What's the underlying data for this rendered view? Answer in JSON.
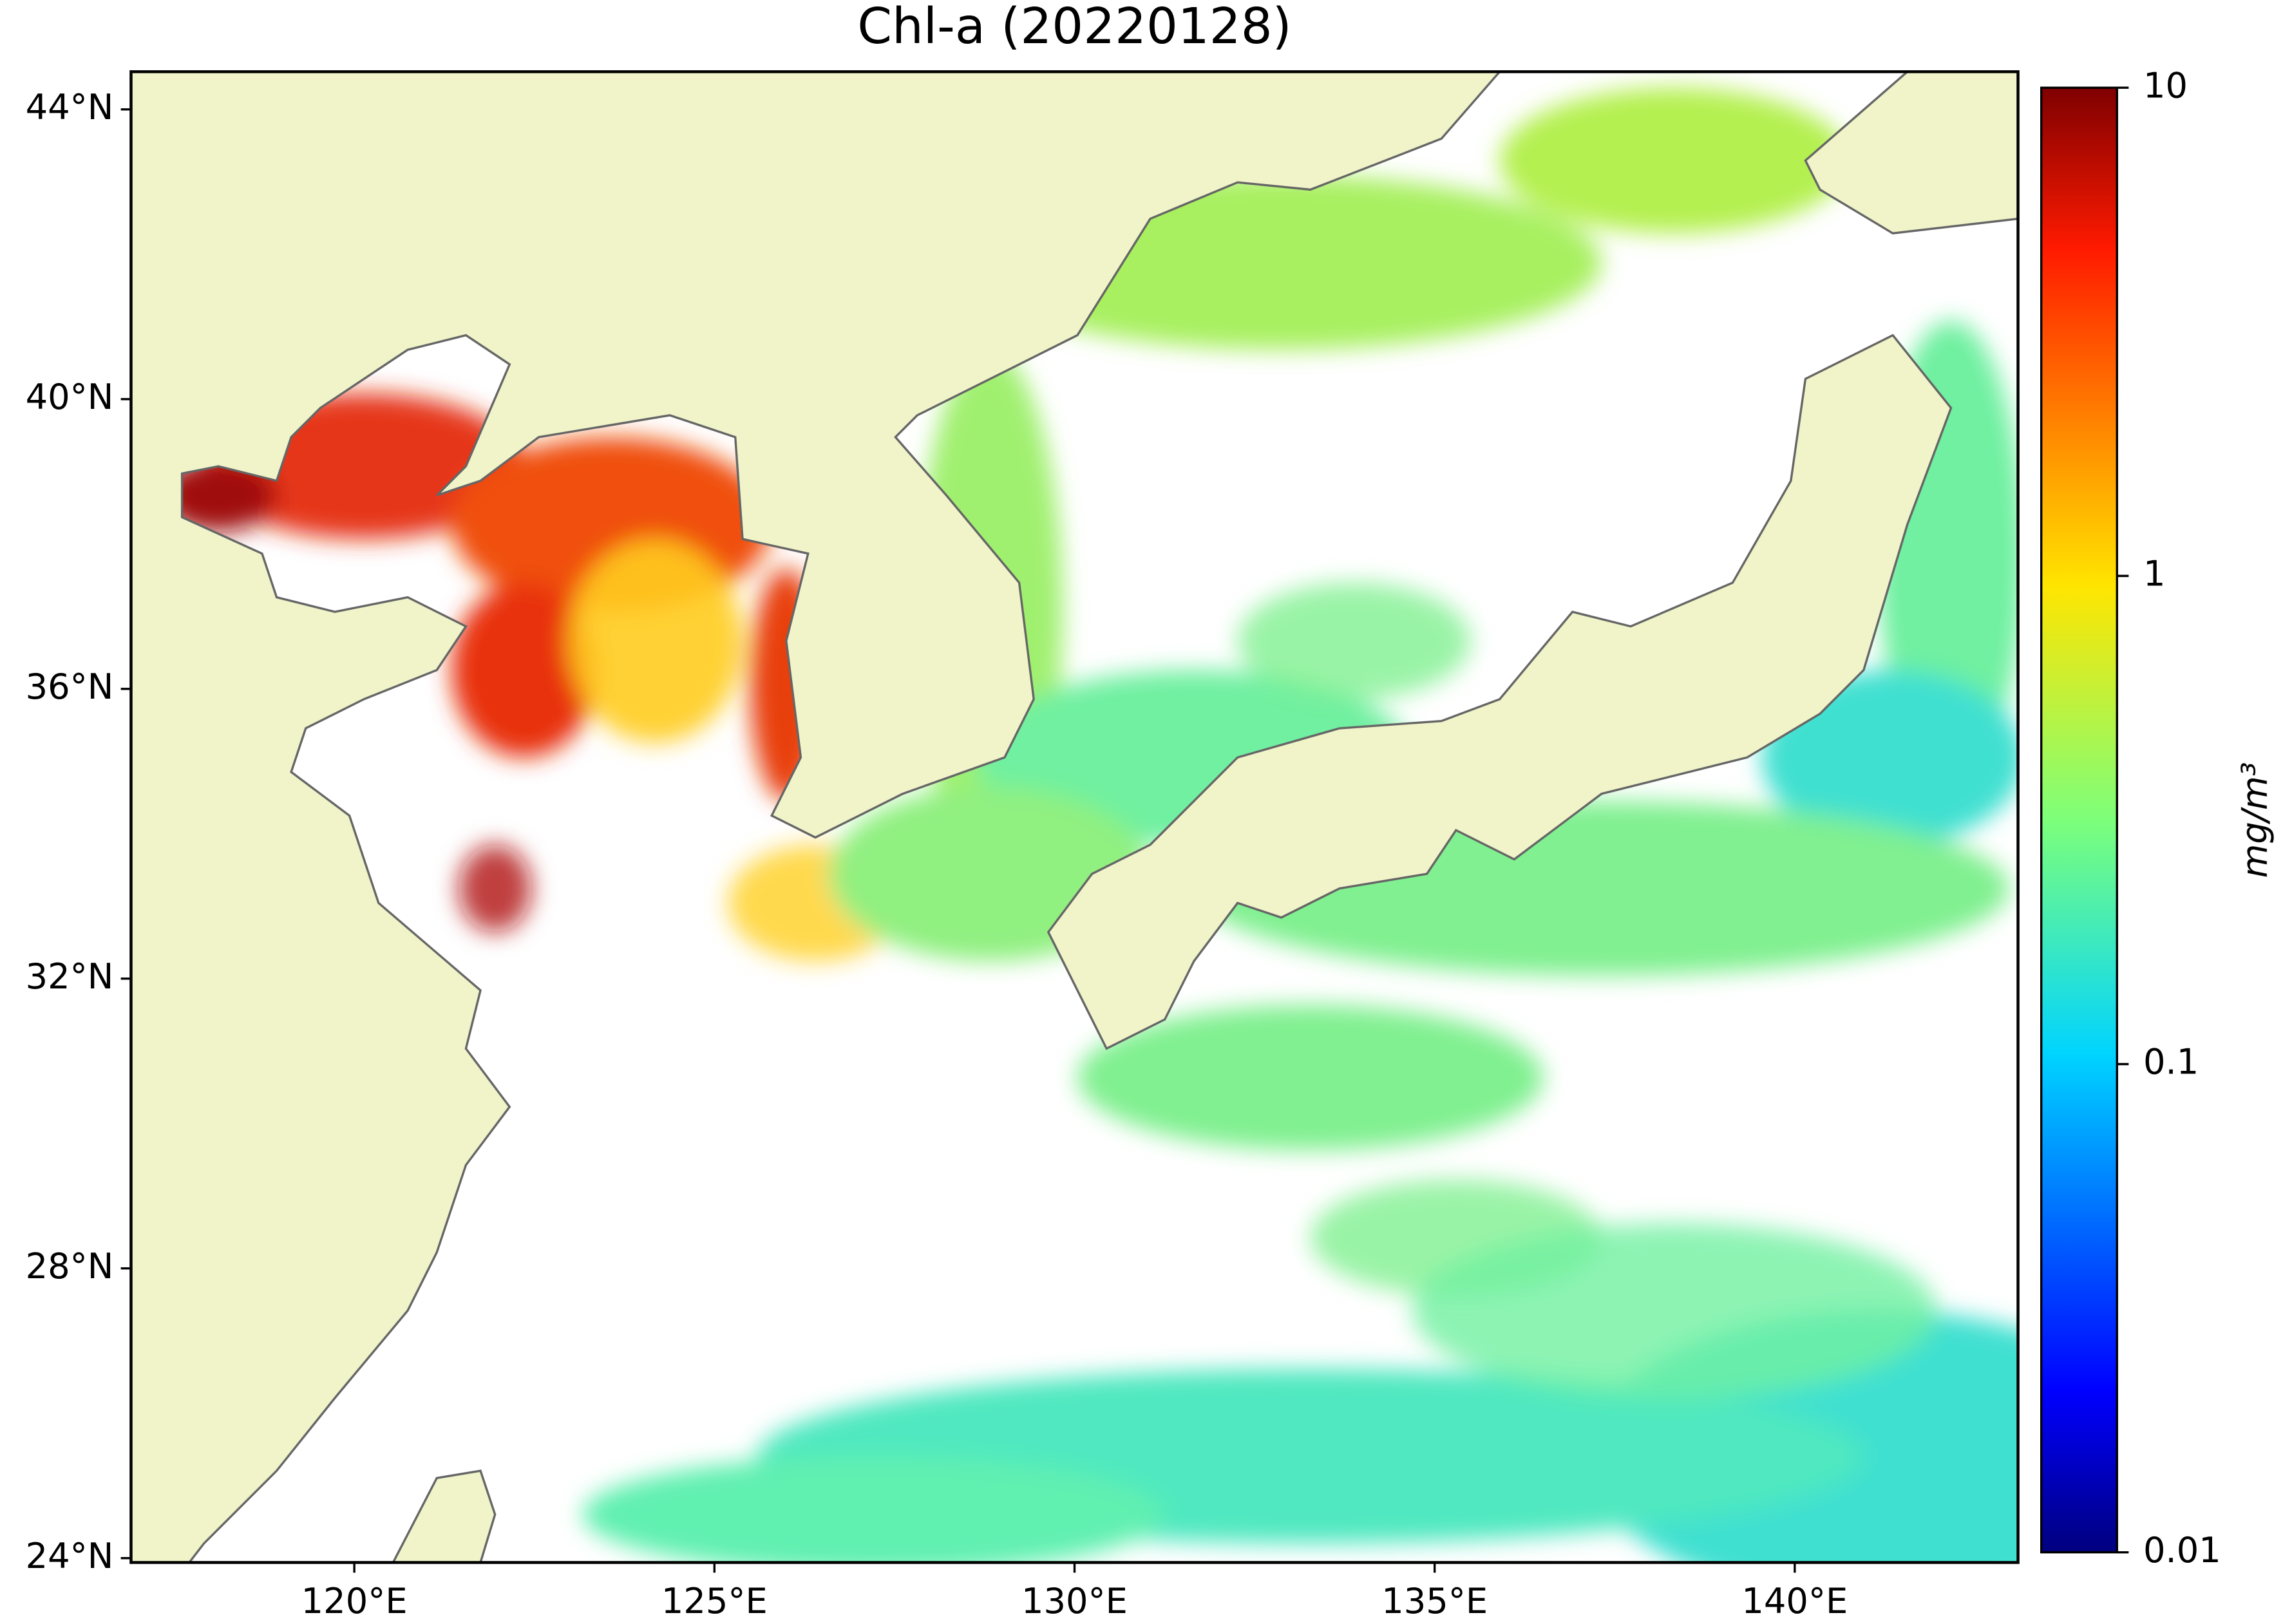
{
  "chart_data": {
    "type": "map",
    "title": "Chl-a (20220128)",
    "xlim": [
      116.9,
      143.1
    ],
    "ylim": [
      23.94,
      44.52
    ],
    "xticks": [
      {
        "value": 120,
        "label": "120°E"
      },
      {
        "value": 125,
        "label": "125°E"
      },
      {
        "value": 130,
        "label": "130°E"
      },
      {
        "value": 135,
        "label": "135°E"
      },
      {
        "value": 140,
        "label": "140°E"
      }
    ],
    "yticks": [
      {
        "value": 24,
        "label": "24°N"
      },
      {
        "value": 28,
        "label": "28°N"
      },
      {
        "value": 32,
        "label": "32°N"
      },
      {
        "value": 36,
        "label": "36°N"
      },
      {
        "value": 40,
        "label": "40°N"
      },
      {
        "value": 44,
        "label": "44°N"
      }
    ],
    "colorbar": {
      "label": "mg/m³",
      "log": true,
      "clim": [
        0.01,
        10
      ],
      "ticks": [
        0.01,
        0.1,
        1,
        10
      ],
      "colormap": "jet"
    },
    "land_color": "#f0f4c8"
  }
}
